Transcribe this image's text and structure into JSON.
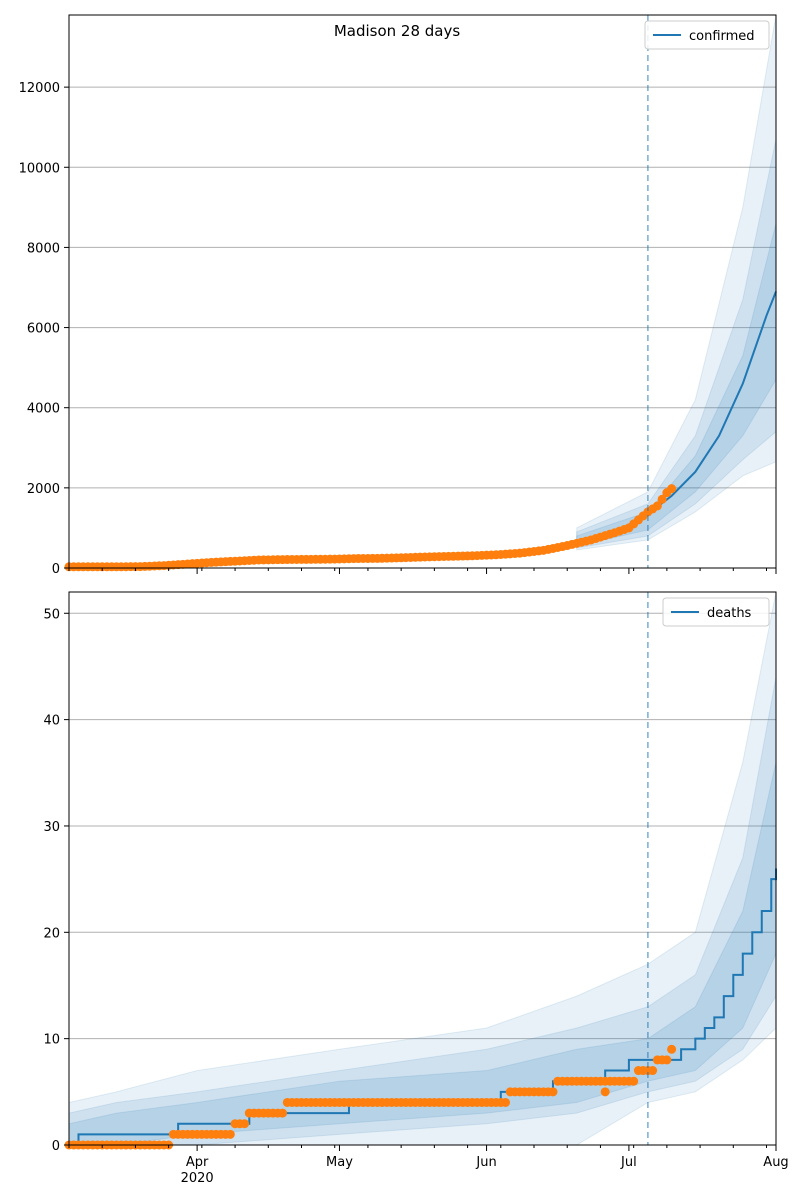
{
  "chart_data": [
    {
      "type": "line",
      "title": "Madison 28 days",
      "legend": {
        "entries": [
          "confirmed"
        ],
        "placement": "top-right"
      },
      "grid": "horizontal",
      "x_range": [
        "2020-03-05",
        "2020-08-01"
      ],
      "ylim": [
        0,
        13800
      ],
      "yticks": [
        0,
        2000,
        4000,
        6000,
        8000,
        10000,
        12000
      ],
      "xticks": [
        {
          "date": "2020-04-01",
          "label": "Apr",
          "sublabel": "2020"
        },
        {
          "date": "2020-05-01",
          "label": "May"
        },
        {
          "date": "2020-06-01",
          "label": "Jun"
        },
        {
          "date": "2020-07-01",
          "label": "Jul"
        },
        {
          "date": "2020-08-01",
          "label": "Aug"
        }
      ],
      "forecast_start": "2020-07-05",
      "series": [
        {
          "name": "confirmed",
          "kind": "model-median-line",
          "color": "#1f77b4",
          "x": [
            "2020-03-05",
            "2020-03-15",
            "2020-03-25",
            "2020-04-05",
            "2020-04-15",
            "2020-04-25",
            "2020-05-05",
            "2020-05-15",
            "2020-05-25",
            "2020-06-05",
            "2020-06-15",
            "2020-06-22",
            "2020-06-29",
            "2020-07-05",
            "2020-07-10",
            "2020-07-15",
            "2020-07-20",
            "2020-07-25",
            "2020-07-30",
            "2020-08-01"
          ],
          "y": [
            30,
            35,
            60,
            140,
            200,
            215,
            240,
            260,
            290,
            330,
            480,
            680,
            950,
            1350,
            1800,
            2400,
            3300,
            4600,
            6300,
            6900
          ]
        },
        {
          "kind": "observed-points",
          "color": "#ff7f0e",
          "x": [
            "2020-03-05",
            "2020-03-10",
            "2020-03-15",
            "2020-03-20",
            "2020-03-25",
            "2020-03-30",
            "2020-04-04",
            "2020-04-09",
            "2020-04-14",
            "2020-04-19",
            "2020-04-24",
            "2020-04-29",
            "2020-05-04",
            "2020-05-09",
            "2020-05-14",
            "2020-05-19",
            "2020-05-24",
            "2020-05-29",
            "2020-06-03",
            "2020-06-08",
            "2020-06-13",
            "2020-06-18",
            "2020-06-23",
            "2020-06-28",
            "2020-07-01",
            "2020-07-03",
            "2020-07-05",
            "2020-07-07",
            "2020-07-09",
            "2020-07-10"
          ],
          "y": [
            30,
            30,
            30,
            35,
            60,
            100,
            140,
            170,
            200,
            210,
            215,
            220,
            235,
            240,
            255,
            275,
            290,
            305,
            330,
            370,
            440,
            560,
            700,
            880,
            1000,
            1200,
            1400,
            1550,
            1880,
            1980
          ]
        }
      ],
      "uncertainty_bands": [
        {
          "label": "outer",
          "x": [
            "2020-06-20",
            "2020-07-05",
            "2020-07-15",
            "2020-07-25",
            "2020-08-01"
          ],
          "lower": [
            450,
            700,
            1400,
            2300,
            2650
          ],
          "upper": [
            1000,
            1900,
            4200,
            9000,
            13800
          ]
        },
        {
          "label": "middle",
          "x": [
            "2020-06-20",
            "2020-07-05",
            "2020-07-15",
            "2020-07-25",
            "2020-08-01"
          ],
          "lower": [
            500,
            800,
            1600,
            2700,
            3400
          ],
          "upper": [
            900,
            1600,
            3300,
            6700,
            10700
          ]
        },
        {
          "label": "inner",
          "x": [
            "2020-06-20",
            "2020-07-05",
            "2020-07-15",
            "2020-07-25",
            "2020-08-01"
          ],
          "lower": [
            550,
            950,
            1900,
            3300,
            4700
          ],
          "upper": [
            800,
            1400,
            2800,
            5300,
            8600
          ]
        }
      ]
    },
    {
      "type": "line",
      "legend": {
        "entries": [
          "deaths"
        ],
        "placement": "top-right"
      },
      "grid": "horizontal",
      "x_range": [
        "2020-03-05",
        "2020-08-01"
      ],
      "ylim": [
        0,
        52
      ],
      "yticks": [
        0,
        10,
        20,
        30,
        40,
        50
      ],
      "xticks": [
        {
          "date": "2020-04-01",
          "label": "Apr",
          "sublabel": "2020"
        },
        {
          "date": "2020-05-01",
          "label": "May"
        },
        {
          "date": "2020-06-01",
          "label": "Jun"
        },
        {
          "date": "2020-07-01",
          "label": "Jul"
        },
        {
          "date": "2020-08-01",
          "label": "Aug"
        }
      ],
      "forecast_start": "2020-07-05",
      "series": [
        {
          "name": "deaths",
          "kind": "model-median-step",
          "color": "#1f77b4",
          "x": [
            "2020-03-05",
            "2020-03-07",
            "2020-03-28",
            "2020-04-08",
            "2020-04-12",
            "2020-04-20",
            "2020-05-03",
            "2020-06-04",
            "2020-06-15",
            "2020-06-20",
            "2020-06-26",
            "2020-07-01",
            "2020-07-04",
            "2020-07-07",
            "2020-07-12",
            "2020-07-15",
            "2020-07-17",
            "2020-07-19",
            "2020-07-21",
            "2020-07-23",
            "2020-07-25",
            "2020-07-27",
            "2020-07-29",
            "2020-07-31",
            "2020-08-01"
          ],
          "y": [
            0,
            1,
            2,
            2,
            3,
            3,
            4,
            5,
            6,
            6,
            7,
            8,
            8,
            8,
            9,
            10,
            11,
            12,
            14,
            16,
            18,
            20,
            22,
            25,
            26
          ]
        },
        {
          "kind": "observed-points",
          "color": "#ff7f0e",
          "x": [
            "2020-03-05",
            "2020-03-10",
            "2020-03-15",
            "2020-03-20",
            "2020-03-25",
            "2020-03-27",
            "2020-04-01",
            "2020-04-05",
            "2020-04-09",
            "2020-04-12",
            "2020-04-17",
            "2020-04-20",
            "2020-04-25",
            "2020-05-01",
            "2020-05-10",
            "2020-05-20",
            "2020-05-28",
            "2020-06-04",
            "2020-06-06",
            "2020-06-12",
            "2020-06-16",
            "2020-06-20",
            "2020-06-24",
            "2020-06-27",
            "2020-06-30",
            "2020-07-03",
            "2020-07-05",
            "2020-07-07",
            "2020-07-09"
          ],
          "y": [
            0,
            0,
            0,
            0,
            0,
            1,
            1,
            1,
            2,
            3,
            3,
            4,
            4,
            4,
            4,
            4,
            4,
            4,
            5,
            5,
            6,
            6,
            6,
            6,
            6,
            7,
            7,
            8,
            8
          ]
        }
      ],
      "extra_points": [
        {
          "x": "2020-06-26",
          "y": 5
        },
        {
          "x": "2020-07-10",
          "y": 9
        }
      ],
      "uncertainty_bands": [
        {
          "label": "outer",
          "x": [
            "2020-03-05",
            "2020-03-15",
            "2020-04-01",
            "2020-05-01",
            "2020-06-01",
            "2020-06-20",
            "2020-07-05",
            "2020-07-15",
            "2020-07-25",
            "2020-08-01"
          ],
          "lower": [
            0,
            0,
            0,
            0,
            0,
            0,
            4,
            5,
            8,
            11
          ],
          "upper": [
            4,
            5,
            7,
            9,
            11,
            14,
            17,
            20,
            36,
            52
          ]
        },
        {
          "label": "middle",
          "x": [
            "2020-03-05",
            "2020-03-15",
            "2020-04-01",
            "2020-05-01",
            "2020-06-01",
            "2020-06-20",
            "2020-07-05",
            "2020-07-15",
            "2020-07-25",
            "2020-08-01"
          ],
          "lower": [
            0,
            0,
            0,
            1,
            2,
            3,
            5,
            6,
            9,
            14
          ],
          "upper": [
            3,
            4,
            5,
            7,
            9,
            11,
            13,
            16,
            27,
            44
          ]
        },
        {
          "label": "inner",
          "x": [
            "2020-03-05",
            "2020-03-15",
            "2020-04-01",
            "2020-05-01",
            "2020-06-01",
            "2020-06-20",
            "2020-07-05",
            "2020-07-15",
            "2020-07-25",
            "2020-08-01"
          ],
          "lower": [
            0,
            0,
            1,
            2,
            3,
            4,
            6,
            7,
            11,
            18
          ],
          "upper": [
            2,
            3,
            4,
            6,
            7,
            9,
            10,
            13,
            22,
            36
          ]
        }
      ]
    }
  ],
  "colors": {
    "line": "#1f77b4",
    "points": "#ff7f0e",
    "band": "#1f77b4",
    "grid": "#b0b0b0",
    "forecast_line": "#1f77b4"
  }
}
